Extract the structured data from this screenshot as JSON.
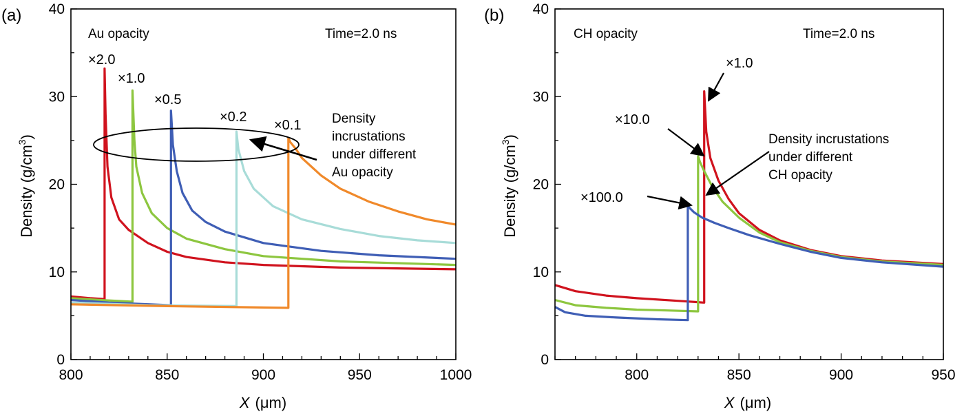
{
  "chart_data": [
    {
      "type": "line",
      "panel_label": "(a)",
      "title": "Au opacity",
      "time_label": "Time=2.0 ns",
      "xlabel_var": "X",
      "xlabel_unit": "(μm)",
      "ylabel": "Density (g/cm",
      "ylabel_sup": "3",
      "ylabel_close": ")",
      "xlim": [
        800,
        1000
      ],
      "ylim": [
        0,
        40
      ],
      "xticks": [
        800,
        850,
        900,
        950,
        1000
      ],
      "yticks": [
        0,
        10,
        20,
        30,
        40
      ],
      "grid": false,
      "series": [
        {
          "name": "×2.0",
          "color": "#d0131e",
          "points": [
            [
              800,
              7.2
            ],
            [
              810,
              7.0
            ],
            [
              817.5,
              6.9
            ],
            [
              817.5,
              33.2
            ],
            [
              818,
              28
            ],
            [
              819,
              22
            ],
            [
              821,
              18.5
            ],
            [
              825,
              16
            ],
            [
              830,
              14.8
            ],
            [
              840,
              13.3
            ],
            [
              850,
              12.3
            ],
            [
              860,
              11.7
            ],
            [
              880,
              11.1
            ],
            [
              900,
              10.8
            ],
            [
              940,
              10.5
            ],
            [
              1000,
              10.3
            ]
          ]
        },
        {
          "name": "×1.0",
          "color": "#8dc63f",
          "points": [
            [
              800,
              7.0
            ],
            [
              815,
              6.8
            ],
            [
              832,
              6.6
            ],
            [
              832,
              30.7
            ],
            [
              833,
              25
            ],
            [
              834,
              22
            ],
            [
              837,
              19
            ],
            [
              842,
              16.7
            ],
            [
              850,
              15
            ],
            [
              860,
              13.8
            ],
            [
              880,
              12.6
            ],
            [
              900,
              11.8
            ],
            [
              940,
              11.2
            ],
            [
              1000,
              10.8
            ]
          ]
        },
        {
          "name": "×0.5",
          "color": "#3f5eb5",
          "points": [
            [
              800,
              6.8
            ],
            [
              820,
              6.5
            ],
            [
              852,
              6.2
            ],
            [
              852,
              28.4
            ],
            [
              853,
              24.5
            ],
            [
              855,
              21.5
            ],
            [
              858,
              19
            ],
            [
              863,
              17
            ],
            [
              870,
              15.7
            ],
            [
              880,
              14.6
            ],
            [
              900,
              13.3
            ],
            [
              930,
              12.4
            ],
            [
              960,
              11.9
            ],
            [
              1000,
              11.5
            ]
          ]
        },
        {
          "name": "×0.2",
          "color": "#a8dcd8",
          "points": [
            [
              800,
              6.5
            ],
            [
              840,
              6.2
            ],
            [
              886,
              6.1
            ],
            [
              886,
              26
            ],
            [
              887,
              24
            ],
            [
              890,
              21.5
            ],
            [
              895,
              19.5
            ],
            [
              905,
              17.5
            ],
            [
              920,
              16
            ],
            [
              940,
              14.9
            ],
            [
              960,
              14.1
            ],
            [
              980,
              13.6
            ],
            [
              1000,
              13.3
            ]
          ]
        },
        {
          "name": "×0.1",
          "color": "#f0892a",
          "points": [
            [
              800,
              6.3
            ],
            [
              850,
              6.1
            ],
            [
              913,
              5.9
            ],
            [
              913,
              25.3
            ],
            [
              914,
              24.8
            ],
            [
              917,
              24
            ],
            [
              920,
              23
            ],
            [
              930,
              21
            ],
            [
              940,
              19.5
            ],
            [
              955,
              18
            ],
            [
              970,
              16.9
            ],
            [
              985,
              16
            ],
            [
              1000,
              15.4
            ]
          ]
        }
      ],
      "annotations": {
        "multipliers": [
          "×2.0",
          "×1.0",
          "×0.5",
          "×0.2",
          "×0.1"
        ],
        "callout": [
          "Density",
          "incrustations",
          "under different",
          "Au opacity"
        ]
      }
    },
    {
      "type": "line",
      "panel_label": "(b)",
      "title": "CH opacity",
      "time_label": "Time=2.0 ns",
      "xlabel_var": "X",
      "xlabel_unit": "(μm)",
      "ylabel": "Density (g/cm",
      "ylabel_sup": "3",
      "ylabel_close": ")",
      "xlim": [
        760,
        950
      ],
      "ylim": [
        0,
        40
      ],
      "xticks": [
        800,
        850,
        900,
        950
      ],
      "yticks": [
        0,
        10,
        20,
        30,
        40
      ],
      "grid": false,
      "series": [
        {
          "name": "×1.0",
          "color": "#d0131e",
          "points": [
            [
              760,
              8.5
            ],
            [
              770,
              7.8
            ],
            [
              785,
              7.3
            ],
            [
              800,
              7.0
            ],
            [
              820,
              6.7
            ],
            [
              833,
              6.5
            ],
            [
              833,
              30.6
            ],
            [
              834,
              26
            ],
            [
              836,
              23
            ],
            [
              840,
              20.4
            ],
            [
              845,
              18.3
            ],
            [
              850,
              16.7
            ],
            [
              860,
              14.8
            ],
            [
              870,
              13.6
            ],
            [
              885,
              12.5
            ],
            [
              900,
              11.8
            ],
            [
              920,
              11.3
            ],
            [
              950,
              10.9
            ]
          ]
        },
        {
          "name": "×10.0",
          "color": "#8dc63f",
          "points": [
            [
              760,
              6.8
            ],
            [
              770,
              6.2
            ],
            [
              785,
              5.9
            ],
            [
              800,
              5.7
            ],
            [
              815,
              5.6
            ],
            [
              830,
              5.5
            ],
            [
              830,
              23.2
            ],
            [
              831,
              22.5
            ],
            [
              833,
              21.5
            ],
            [
              837,
              19.7
            ],
            [
              842,
              18
            ],
            [
              850,
              16.2
            ],
            [
              860,
              14.5
            ],
            [
              870,
              13.4
            ],
            [
              885,
              12.4
            ],
            [
              900,
              11.7
            ],
            [
              920,
              11.2
            ],
            [
              950,
              10.8
            ]
          ]
        },
        {
          "name": "×100.0",
          "color": "#3f5eb5",
          "points": [
            [
              760,
              6
            ],
            [
              765,
              5.4
            ],
            [
              775,
              5.0
            ],
            [
              790,
              4.8
            ],
            [
              810,
              4.6
            ],
            [
              825,
              4.5
            ],
            [
              825,
              17.5
            ],
            [
              828,
              16.8
            ],
            [
              832,
              16.2
            ],
            [
              838,
              15.6
            ],
            [
              845,
              15.0
            ],
            [
              855,
              14.2
            ],
            [
              870,
              13.2
            ],
            [
              885,
              12.3
            ],
            [
              900,
              11.6
            ],
            [
              920,
              11.1
            ],
            [
              950,
              10.6
            ]
          ]
        }
      ],
      "annotations": {
        "multipliers": [
          "×1.0",
          "×10.0",
          "×100.0"
        ],
        "callout": [
          "Density incrustations",
          "under different",
          "CH opacity"
        ]
      }
    }
  ]
}
